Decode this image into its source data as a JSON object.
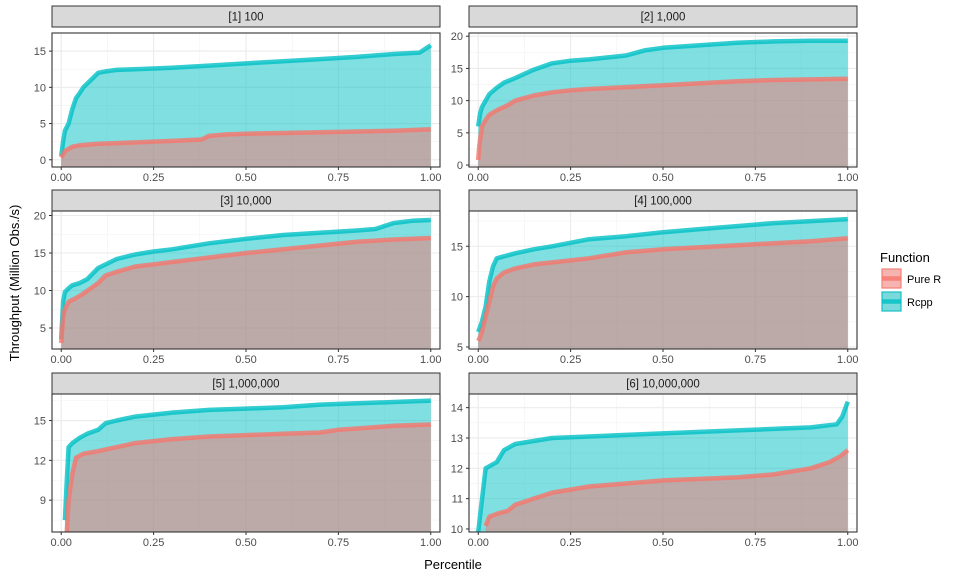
{
  "chart_data": {
    "type": "area",
    "xlabel": "Percentile",
    "ylabel": "Throughput (Million Obs./s)",
    "legend": {
      "title": "Function",
      "position": "right",
      "entries": [
        {
          "name": "Pure R",
          "color": "#F8766D"
        },
        {
          "name": "Rcpp",
          "color": "#00BFC4"
        }
      ]
    },
    "grid": true,
    "x_ticks": [
      0,
      0.25,
      0.5,
      0.75,
      1
    ],
    "x_tick_labels": [
      "0.00",
      "0.25",
      "0.50",
      "0.75",
      "1.00"
    ],
    "panels": [
      {
        "title": "[1] 100",
        "xlim": [
          -0.025,
          1.025
        ],
        "ylim": [
          -1,
          17.5
        ],
        "y_ticks": [
          0,
          5,
          10,
          15
        ],
        "series": [
          {
            "name": "Rcpp",
            "x": [
              0,
              0.005,
              0.01,
              0.02,
              0.03,
              0.04,
              0.05,
              0.06,
              0.08,
              0.1,
              0.12,
              0.15,
              0.2,
              0.3,
              0.4,
              0.5,
              0.6,
              0.7,
              0.8,
              0.9,
              0.97,
              0.985,
              1.0
            ],
            "y": [
              0.5,
              2.5,
              4.0,
              5.0,
              7.0,
              8.5,
              9.2,
              10.0,
              11.0,
              12.0,
              12.2,
              12.4,
              12.5,
              12.7,
              13.0,
              13.3,
              13.6,
              13.9,
              14.2,
              14.6,
              14.8,
              15.3,
              15.8
            ]
          },
          {
            "name": "Pure R",
            "x": [
              0,
              0.01,
              0.03,
              0.05,
              0.1,
              0.15,
              0.2,
              0.3,
              0.38,
              0.4,
              0.45,
              0.5,
              0.6,
              0.7,
              0.8,
              0.9,
              1.0
            ],
            "y": [
              0.3,
              1.2,
              1.8,
              2.0,
              2.2,
              2.3,
              2.4,
              2.6,
              2.8,
              3.3,
              3.5,
              3.6,
              3.7,
              3.8,
              3.9,
              4.0,
              4.2
            ]
          }
        ]
      },
      {
        "title": "[2] 1,000",
        "xlim": [
          -0.025,
          1.025
        ],
        "ylim": [
          -0.3,
          20.5
        ],
        "y_ticks": [
          0,
          5,
          10,
          15,
          20
        ],
        "series": [
          {
            "name": "Rcpp",
            "x": [
              0,
              0.005,
              0.01,
              0.02,
              0.03,
              0.05,
              0.07,
              0.1,
              0.15,
              0.2,
              0.25,
              0.3,
              0.4,
              0.45,
              0.5,
              0.6,
              0.7,
              0.8,
              0.9,
              1.0
            ],
            "y": [
              6.0,
              8.0,
              9.0,
              10.0,
              11.0,
              12.0,
              12.8,
              13.5,
              14.8,
              15.8,
              16.2,
              16.4,
              17.0,
              17.8,
              18.2,
              18.6,
              19.0,
              19.2,
              19.3,
              19.3
            ]
          },
          {
            "name": "Pure R",
            "x": [
              0,
              0.003,
              0.01,
              0.02,
              0.03,
              0.05,
              0.08,
              0.1,
              0.15,
              0.2,
              0.25,
              0.3,
              0.4,
              0.5,
              0.6,
              0.7,
              0.8,
              0.9,
              1.0
            ],
            "y": [
              0.8,
              3.0,
              6.0,
              7.0,
              7.8,
              8.5,
              9.3,
              10.0,
              10.8,
              11.3,
              11.6,
              11.8,
              12.1,
              12.4,
              12.7,
              13.0,
              13.2,
              13.3,
              13.4
            ]
          }
        ]
      },
      {
        "title": "[3] 10,000",
        "xlim": [
          -0.025,
          1.025
        ],
        "ylim": [
          2.2,
          20.6
        ],
        "y_ticks": [
          5,
          10,
          15,
          20
        ],
        "series": [
          {
            "name": "Rcpp",
            "x": [
              0,
              0.005,
              0.01,
              0.02,
              0.03,
              0.05,
              0.07,
              0.1,
              0.15,
              0.2,
              0.25,
              0.3,
              0.4,
              0.5,
              0.6,
              0.7,
              0.8,
              0.85,
              0.9,
              0.95,
              1.0
            ],
            "y": [
              3.5,
              8.5,
              9.8,
              10.3,
              10.7,
              11.0,
              11.5,
              13.0,
              14.2,
              14.8,
              15.2,
              15.5,
              16.3,
              16.9,
              17.4,
              17.7,
              18.0,
              18.2,
              19.0,
              19.3,
              19.4
            ]
          },
          {
            "name": "Pure R",
            "x": [
              0,
              0.005,
              0.01,
              0.02,
              0.04,
              0.06,
              0.08,
              0.1,
              0.12,
              0.15,
              0.2,
              0.25,
              0.3,
              0.4,
              0.5,
              0.6,
              0.7,
              0.8,
              0.9,
              1.0
            ],
            "y": [
              3.0,
              6.5,
              7.5,
              8.5,
              9.0,
              9.6,
              10.3,
              11.0,
              12.0,
              12.5,
              13.2,
              13.5,
              13.8,
              14.4,
              15.0,
              15.5,
              16.0,
              16.5,
              16.8,
              17.0
            ]
          }
        ]
      },
      {
        "title": "[4] 100,000",
        "xlim": [
          -0.025,
          1.025
        ],
        "ylim": [
          4.8,
          18.5
        ],
        "y_ticks": [
          5,
          10,
          15
        ],
        "series": [
          {
            "name": "Rcpp",
            "x": [
              0,
              0.005,
              0.01,
              0.02,
              0.03,
              0.04,
              0.05,
              0.07,
              0.1,
              0.15,
              0.2,
              0.3,
              0.4,
              0.5,
              0.6,
              0.7,
              0.8,
              0.9,
              1.0
            ],
            "y": [
              6.5,
              7.0,
              7.5,
              9.0,
              11.5,
              13.0,
              13.8,
              14.0,
              14.3,
              14.7,
              15.0,
              15.7,
              16.0,
              16.4,
              16.7,
              17.0,
              17.3,
              17.5,
              17.7
            ]
          },
          {
            "name": "Pure R",
            "x": [
              0,
              0.005,
              0.01,
              0.02,
              0.03,
              0.04,
              0.05,
              0.07,
              0.1,
              0.15,
              0.2,
              0.3,
              0.4,
              0.5,
              0.6,
              0.7,
              0.8,
              0.9,
              1.0
            ],
            "y": [
              5.6,
              6.0,
              6.5,
              8.0,
              9.5,
              11.0,
              11.8,
              12.4,
              12.8,
              13.2,
              13.4,
              13.8,
              14.4,
              14.7,
              14.9,
              15.1,
              15.3,
              15.5,
              15.8
            ]
          }
        ]
      },
      {
        "title": "[5] 1,000,000",
        "xlim": [
          -0.025,
          1.025
        ],
        "ylim": [
          6.6,
          17.0
        ],
        "y_ticks": [
          9,
          12,
          15
        ],
        "series": [
          {
            "name": "Rcpp",
            "x": [
              0.01,
              0.015,
              0.02,
              0.03,
              0.05,
              0.07,
              0.1,
              0.12,
              0.15,
              0.2,
              0.3,
              0.4,
              0.5,
              0.6,
              0.7,
              0.8,
              0.9,
              1.0
            ],
            "y": [
              7.5,
              10.5,
              13.0,
              13.3,
              13.7,
              14.0,
              14.3,
              14.8,
              15.0,
              15.3,
              15.6,
              15.8,
              15.9,
              16.0,
              16.2,
              16.3,
              16.4,
              16.5
            ]
          },
          {
            "name": "Pure R",
            "x": [
              0.015,
              0.02,
              0.03,
              0.04,
              0.06,
              0.1,
              0.15,
              0.2,
              0.3,
              0.4,
              0.5,
              0.6,
              0.7,
              0.75,
              0.8,
              0.9,
              1.0
            ],
            "y": [
              6.6,
              9.0,
              11.0,
              12.2,
              12.5,
              12.7,
              13.0,
              13.3,
              13.6,
              13.8,
              13.9,
              14.0,
              14.1,
              14.3,
              14.4,
              14.6,
              14.7
            ]
          }
        ]
      },
      {
        "title": "[6] 10,000,000",
        "xlim": [
          -0.025,
          1.025
        ],
        "ylim": [
          9.9,
          14.45
        ],
        "y_ticks": [
          10,
          11,
          12,
          13,
          14
        ],
        "series": [
          {
            "name": "Rcpp",
            "x": [
              0,
              0.02,
              0.05,
              0.07,
              0.1,
              0.15,
              0.2,
              0.3,
              0.4,
              0.5,
              0.6,
              0.7,
              0.8,
              0.9,
              0.97,
              0.985,
              1.0
            ],
            "y": [
              9.9,
              12.0,
              12.2,
              12.6,
              12.8,
              12.9,
              13.0,
              13.05,
              13.1,
              13.15,
              13.2,
              13.25,
              13.3,
              13.35,
              13.45,
              13.7,
              14.2
            ]
          },
          {
            "name": "Pure R",
            "x": [
              0.02,
              0.03,
              0.05,
              0.08,
              0.1,
              0.15,
              0.2,
              0.3,
              0.4,
              0.5,
              0.6,
              0.7,
              0.8,
              0.85,
              0.9,
              0.95,
              0.98,
              1.0
            ],
            "y": [
              10.1,
              10.4,
              10.5,
              10.6,
              10.8,
              11.0,
              11.2,
              11.4,
              11.5,
              11.6,
              11.65,
              11.7,
              11.8,
              11.9,
              12.0,
              12.2,
              12.4,
              12.6
            ]
          }
        ]
      }
    ]
  }
}
